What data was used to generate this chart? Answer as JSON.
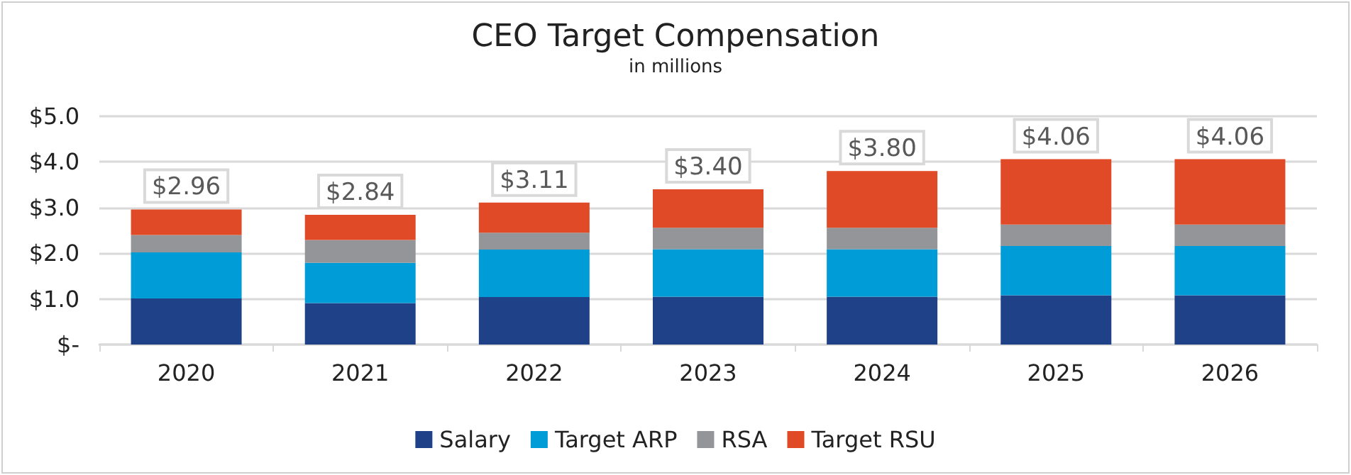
{
  "chart_data": {
    "type": "bar",
    "title": "CEO Target Compensation",
    "subtitle": "in millions",
    "categories": [
      "2020",
      "2021",
      "2022",
      "2023",
      "2024",
      "2025",
      "2026"
    ],
    "stacked": true,
    "series": [
      {
        "name": "Salary",
        "color": "#1f4188",
        "values": [
          1.01,
          0.91,
          1.04,
          1.05,
          1.05,
          1.08,
          1.08
        ]
      },
      {
        "name": "Target ARP",
        "color": "#009cd8",
        "values": [
          1.01,
          0.88,
          1.04,
          1.04,
          1.04,
          1.08,
          1.08
        ]
      },
      {
        "name": "RSA",
        "color": "#939598",
        "values": [
          0.38,
          0.5,
          0.37,
          0.47,
          0.47,
          0.47,
          0.47
        ]
      },
      {
        "name": "Target RSU",
        "color": "#e04a26",
        "values": [
          0.56,
          0.55,
          0.66,
          0.84,
          1.24,
          1.43,
          1.43
        ]
      }
    ],
    "totals": [
      "$2.96",
      "$2.84",
      "$3.11",
      "$3.40",
      "$3.80",
      "$4.06",
      "$4.06"
    ],
    "ylim": [
      0,
      5
    ],
    "yticks": [
      {
        "value": 0,
        "label": "$-"
      },
      {
        "value": 1,
        "label": "$1.0"
      },
      {
        "value": 2,
        "label": "$2.0"
      },
      {
        "value": 3,
        "label": "$3.0"
      },
      {
        "value": 4,
        "label": "$4.0"
      },
      {
        "value": 5,
        "label": "$5.0"
      }
    ],
    "grid": "y",
    "legend": "bottom"
  }
}
